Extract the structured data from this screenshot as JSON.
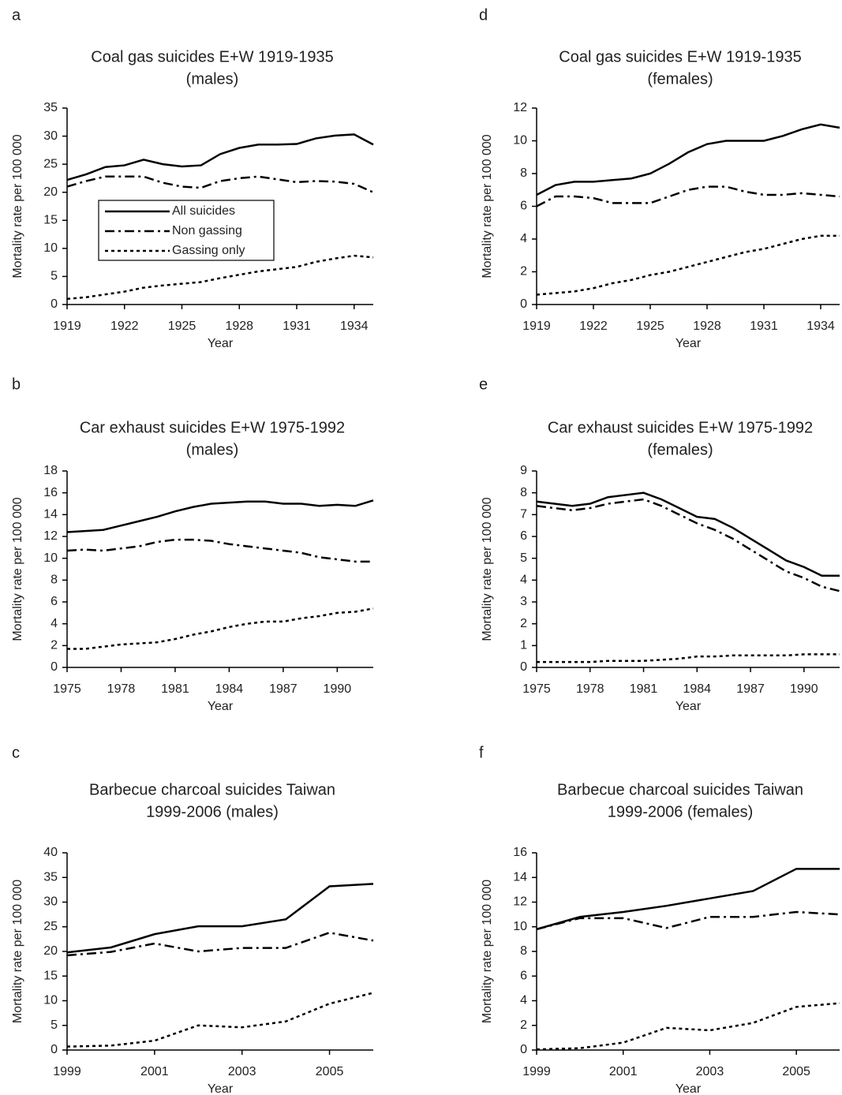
{
  "chart_data": [
    {
      "type": "line",
      "panel": "a",
      "title": [
        "Coal gas suicides E+W 1919-1935",
        "(males)"
      ],
      "xlabel": "Year",
      "ylabel": "Mortality rate per 100 000",
      "x": [
        1919,
        1920,
        1921,
        1922,
        1923,
        1924,
        1925,
        1926,
        1927,
        1928,
        1929,
        1930,
        1931,
        1932,
        1933,
        1934,
        1935
      ],
      "xlim": [
        1919,
        1935
      ],
      "xticks": [
        1919,
        1922,
        1925,
        1928,
        1931,
        1934
      ],
      "ylim": [
        0,
        35
      ],
      "yticks": [
        0,
        5,
        10,
        15,
        20,
        25,
        30,
        35
      ],
      "legend": "upper-left",
      "series": [
        {
          "name": "All suicides",
          "color": "#000000",
          "dash": "solid",
          "values": [
            22.2,
            23.2,
            24.5,
            24.8,
            25.8,
            25.0,
            24.6,
            24.8,
            26.8,
            27.9,
            28.5,
            28.5,
            28.6,
            29.6,
            30.1,
            30.3,
            28.5
          ]
        },
        {
          "name": "Non gassing",
          "color": "#000000",
          "dash": "dashdot",
          "values": [
            21.0,
            22.0,
            22.8,
            22.8,
            22.8,
            21.7,
            21.0,
            20.8,
            22.0,
            22.5,
            22.8,
            22.3,
            21.8,
            22.0,
            21.9,
            21.5,
            20.0
          ]
        },
        {
          "name": "Gassing only",
          "color": "#000000",
          "dash": "dotted",
          "values": [
            1.0,
            1.3,
            1.8,
            2.3,
            3.0,
            3.4,
            3.7,
            4.0,
            4.7,
            5.3,
            5.9,
            6.3,
            6.7,
            7.6,
            8.2,
            8.7,
            8.4
          ]
        }
      ]
    },
    {
      "type": "line",
      "panel": "b",
      "title": [
        "Car exhaust suicides E+W 1975-1992",
        "(males)"
      ],
      "xlabel": "Year",
      "ylabel": "Mortality rate per 100 000",
      "x": [
        1975,
        1976,
        1977,
        1978,
        1979,
        1980,
        1981,
        1982,
        1983,
        1984,
        1985,
        1986,
        1987,
        1988,
        1989,
        1990,
        1991,
        1992
      ],
      "xlim": [
        1975,
        1992
      ],
      "xticks": [
        1975,
        1978,
        1981,
        1984,
        1987,
        1990
      ],
      "ylim": [
        0,
        18
      ],
      "yticks": [
        0,
        2,
        4,
        6,
        8,
        10,
        12,
        14,
        16,
        18
      ],
      "series": [
        {
          "color": "#000000",
          "dash": "solid",
          "values": [
            12.4,
            12.5,
            12.6,
            13.0,
            13.4,
            13.8,
            14.3,
            14.7,
            15.0,
            15.1,
            15.2,
            15.2,
            15.0,
            15.0,
            14.8,
            14.9,
            14.8,
            15.3
          ]
        },
        {
          "color": "#000000",
          "dash": "dashdot",
          "values": [
            10.7,
            10.8,
            10.7,
            10.9,
            11.1,
            11.5,
            11.7,
            11.7,
            11.6,
            11.3,
            11.1,
            10.9,
            10.7,
            10.5,
            10.1,
            9.9,
            9.7,
            9.7
          ]
        },
        {
          "color": "#000000",
          "dash": "dotted",
          "values": [
            1.7,
            1.7,
            1.9,
            2.1,
            2.2,
            2.3,
            2.6,
            3.0,
            3.3,
            3.7,
            4.0,
            4.2,
            4.2,
            4.5,
            4.7,
            5.0,
            5.1,
            5.4
          ]
        }
      ]
    },
    {
      "type": "line",
      "panel": "c",
      "title": [
        "Barbecue charcoal suicides Taiwan",
        "1999-2006 (males)"
      ],
      "xlabel": "Year",
      "ylabel": "Mortality rate per 100 000",
      "x": [
        1999,
        2000,
        2001,
        2002,
        2003,
        2004,
        2005,
        2006
      ],
      "xlim": [
        1999,
        2006
      ],
      "xticks": [
        1999,
        2001,
        2003,
        2005
      ],
      "ylim": [
        0,
        40
      ],
      "yticks": [
        0,
        5,
        10,
        15,
        20,
        25,
        30,
        35,
        40
      ],
      "series": [
        {
          "color": "#000000",
          "dash": "solid",
          "values": [
            19.8,
            20.8,
            23.5,
            25.1,
            25.1,
            26.5,
            33.2,
            33.7
          ]
        },
        {
          "color": "#000000",
          "dash": "dashdot",
          "values": [
            19.2,
            19.9,
            21.6,
            20.0,
            20.7,
            20.7,
            23.8,
            22.2
          ]
        },
        {
          "color": "#000000",
          "dash": "dotted",
          "values": [
            0.7,
            0.9,
            1.9,
            5.0,
            4.6,
            5.8,
            9.4,
            11.6
          ]
        }
      ]
    },
    {
      "type": "line",
      "panel": "d",
      "title": [
        "Coal gas suicides E+W 1919-1935",
        "(females)"
      ],
      "xlabel": "Year",
      "ylabel": "Mortality rate per 100 000",
      "x": [
        1919,
        1920,
        1921,
        1922,
        1923,
        1924,
        1925,
        1926,
        1927,
        1928,
        1929,
        1930,
        1931,
        1932,
        1933,
        1934,
        1935
      ],
      "xlim": [
        1919,
        1935
      ],
      "xticks": [
        1919,
        1922,
        1925,
        1928,
        1931,
        1934
      ],
      "ylim": [
        0,
        12
      ],
      "yticks": [
        0,
        2,
        4,
        6,
        8,
        10,
        12
      ],
      "series": [
        {
          "color": "#000000",
          "dash": "solid",
          "values": [
            6.7,
            7.3,
            7.5,
            7.5,
            7.6,
            7.7,
            8.0,
            8.6,
            9.3,
            9.8,
            10.0,
            10.0,
            10.0,
            10.3,
            10.7,
            11.0,
            10.8
          ]
        },
        {
          "color": "#000000",
          "dash": "dashdot",
          "values": [
            6.0,
            6.6,
            6.6,
            6.5,
            6.2,
            6.2,
            6.2,
            6.6,
            7.0,
            7.2,
            7.2,
            6.9,
            6.7,
            6.7,
            6.8,
            6.7,
            6.6
          ]
        },
        {
          "color": "#000000",
          "dash": "dotted",
          "values": [
            0.6,
            0.7,
            0.8,
            1.0,
            1.3,
            1.5,
            1.8,
            2.0,
            2.3,
            2.6,
            2.9,
            3.2,
            3.4,
            3.7,
            4.0,
            4.2,
            4.2
          ]
        }
      ]
    },
    {
      "type": "line",
      "panel": "e",
      "title": [
        "Car exhaust suicides E+W 1975-1992",
        "(females)"
      ],
      "xlabel": "Year",
      "ylabel": "Mortality rate per 100 000",
      "x": [
        1975,
        1976,
        1977,
        1978,
        1979,
        1980,
        1981,
        1982,
        1983,
        1984,
        1985,
        1986,
        1987,
        1988,
        1989,
        1990,
        1991,
        1992
      ],
      "xlim": [
        1975,
        1992
      ],
      "xticks": [
        1975,
        1978,
        1981,
        1984,
        1987,
        1990
      ],
      "ylim": [
        0,
        9
      ],
      "yticks": [
        0,
        1,
        2,
        3,
        4,
        5,
        6,
        7,
        8,
        9
      ],
      "series": [
        {
          "color": "#000000",
          "dash": "solid",
          "values": [
            7.6,
            7.5,
            7.4,
            7.5,
            7.8,
            7.9,
            8.0,
            7.7,
            7.3,
            6.9,
            6.8,
            6.4,
            5.9,
            5.4,
            4.9,
            4.6,
            4.2,
            4.2
          ]
        },
        {
          "color": "#000000",
          "dash": "dashdot",
          "values": [
            7.4,
            7.3,
            7.2,
            7.3,
            7.5,
            7.6,
            7.7,
            7.4,
            7.0,
            6.6,
            6.3,
            5.9,
            5.4,
            4.9,
            4.4,
            4.1,
            3.7,
            3.5
          ]
        },
        {
          "color": "#000000",
          "dash": "dotted",
          "values": [
            0.25,
            0.25,
            0.25,
            0.25,
            0.3,
            0.3,
            0.3,
            0.35,
            0.4,
            0.5,
            0.5,
            0.55,
            0.55,
            0.55,
            0.55,
            0.6,
            0.6,
            0.6
          ]
        }
      ]
    },
    {
      "type": "line",
      "panel": "f",
      "title": [
        "Barbecue charcoal suicides Taiwan",
        "1999-2006 (females)"
      ],
      "xlabel": "Year",
      "ylabel": "Mortality rate per 100 000",
      "x": [
        1999,
        2000,
        2001,
        2002,
        2003,
        2004,
        2005,
        2006
      ],
      "xlim": [
        1999,
        2006
      ],
      "xticks": [
        1999,
        2001,
        2003,
        2005
      ],
      "ylim": [
        0,
        16
      ],
      "yticks": [
        0,
        2,
        4,
        6,
        8,
        10,
        12,
        14,
        16
      ],
      "series": [
        {
          "color": "#000000",
          "dash": "solid",
          "values": [
            9.8,
            10.8,
            11.2,
            11.7,
            12.3,
            12.9,
            14.7,
            14.7
          ]
        },
        {
          "color": "#000000",
          "dash": "dashdot",
          "values": [
            9.8,
            10.7,
            10.7,
            9.9,
            10.8,
            10.8,
            11.2,
            11.0
          ]
        },
        {
          "color": "#000000",
          "dash": "dotted",
          "values": [
            0.05,
            0.15,
            0.6,
            1.8,
            1.6,
            2.2,
            3.5,
            3.8
          ]
        }
      ]
    }
  ]
}
